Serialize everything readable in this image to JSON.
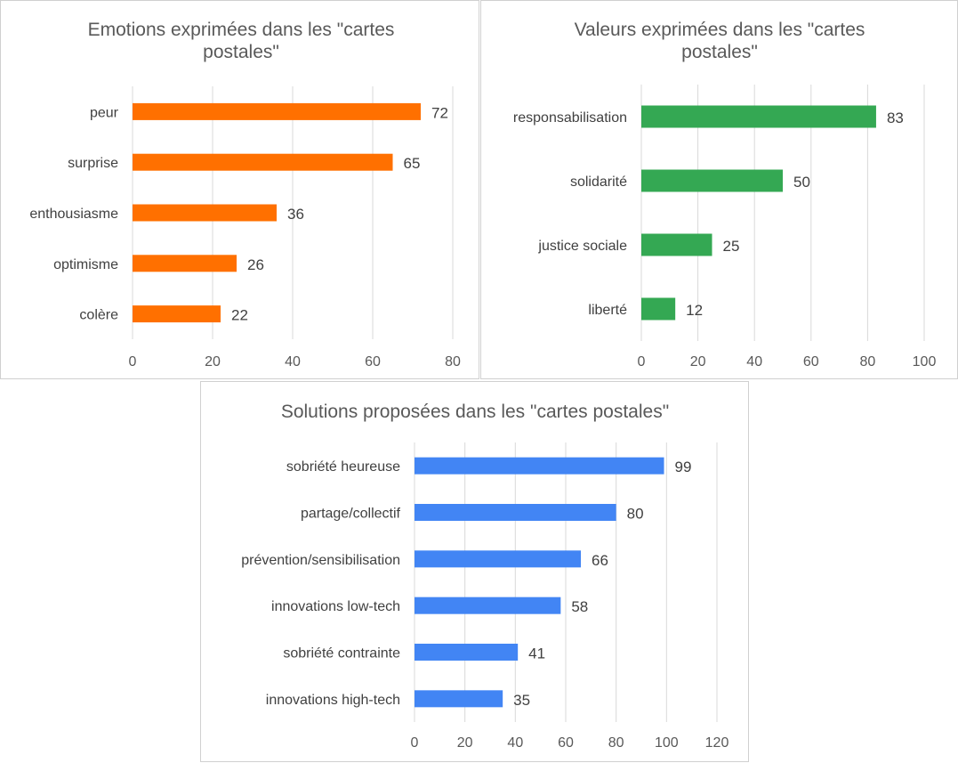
{
  "chart_data": [
    {
      "type": "bar",
      "orientation": "horizontal",
      "title": "Emotions exprimées dans les \"cartes postales\"",
      "categories": [
        "peur",
        "surprise",
        "enthousiasme",
        "optimisme",
        "colère"
      ],
      "values": [
        72,
        65,
        36,
        26,
        22
      ],
      "xlim": [
        0,
        80
      ],
      "ticks": [
        0,
        20,
        40,
        60,
        80
      ],
      "color": "#ff7000",
      "grid": true,
      "legend": "none"
    },
    {
      "type": "bar",
      "orientation": "horizontal",
      "title": "Valeurs exprimées dans les \"cartes postales\"",
      "categories": [
        "responsabilisation",
        "solidarité",
        "justice sociale",
        "liberté"
      ],
      "values": [
        83,
        50,
        25,
        12
      ],
      "xlim": [
        0,
        100
      ],
      "ticks": [
        0,
        20,
        40,
        60,
        80,
        100
      ],
      "color": "#34a853",
      "grid": true,
      "legend": "none"
    },
    {
      "type": "bar",
      "orientation": "horizontal",
      "title": "Solutions proposées dans les \"cartes postales\"",
      "categories": [
        "sobriété heureuse",
        "partage/collectif",
        "prévention/sensibilisation",
        "innovations low-tech",
        "sobriété contrainte",
        "innovations high-tech"
      ],
      "values": [
        99,
        80,
        66,
        58,
        41,
        35
      ],
      "xlim": [
        0,
        120
      ],
      "ticks": [
        0,
        20,
        40,
        60,
        80,
        100,
        120
      ],
      "color": "#4285f4",
      "grid": true,
      "legend": "none"
    }
  ]
}
